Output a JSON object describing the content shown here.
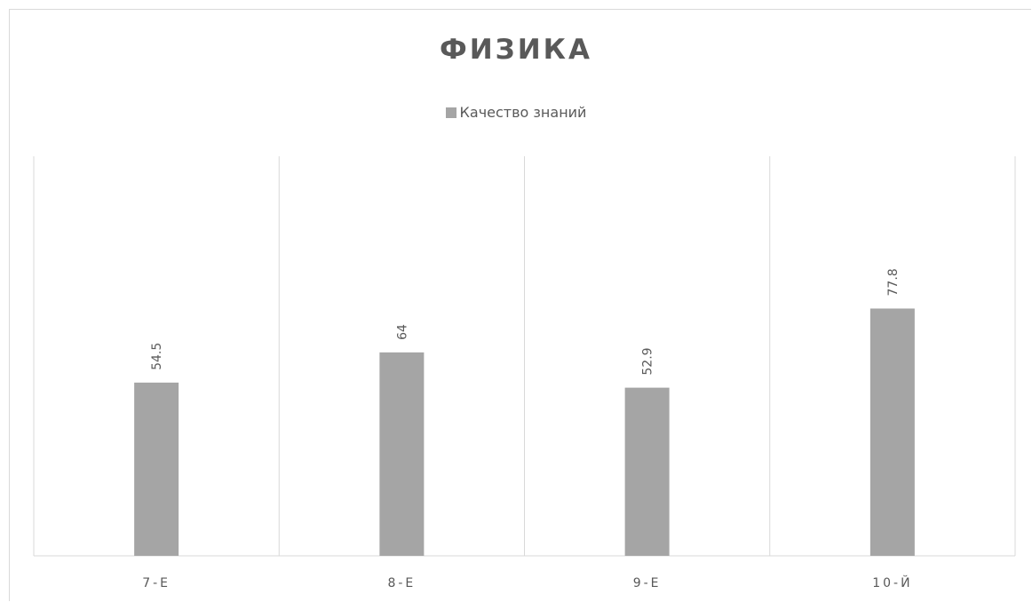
{
  "chart_data": {
    "type": "bar",
    "title": "ФИЗИКА",
    "categories": [
      "7-Е",
      "8-Е",
      "9-Е",
      "10-Й"
    ],
    "series": [
      {
        "name": "Качество знаний",
        "values": [
          54.5,
          64,
          52.9,
          77.8
        ],
        "color": "#a5a5a5"
      }
    ],
    "ylim": [
      0,
      100
    ],
    "grid": "vertical-category-separators",
    "legend": "top",
    "data_labels": true,
    "data_label_rotation": "vertical"
  }
}
